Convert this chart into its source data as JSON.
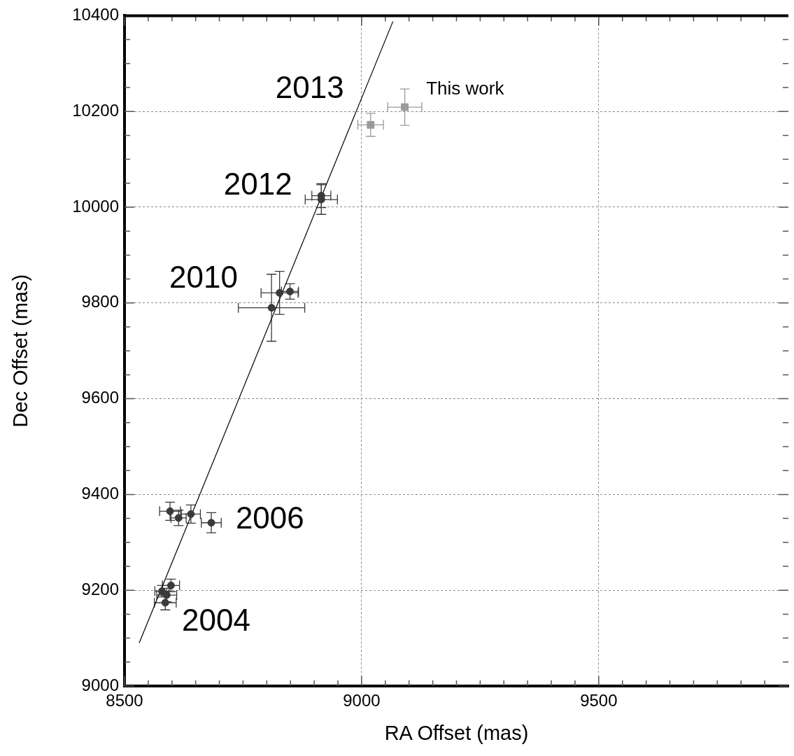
{
  "chart_data": {
    "type": "scatter",
    "xlabel": "RA Offset (mas)",
    "ylabel": "Dec Offset (mas)",
    "xlim": [
      8500,
      9900
    ],
    "ylim": [
      9000,
      10400
    ],
    "xticks": [
      8500,
      {
        "value": 8550,
        "label": null
      },
      {
        "value": 8600,
        "label": null
      },
      {
        "value": 8650,
        "label": null
      },
      {
        "value": 8700,
        "label": null
      },
      {
        "value": 8750,
        "label": null
      },
      {
        "value": 8800,
        "label": null
      },
      {
        "value": 8850,
        "label": null
      },
      {
        "value": 8900,
        "label": null
      },
      {
        "value": 8950,
        "label": null
      },
      9000,
      {
        "value": 9050,
        "label": null
      },
      {
        "value": 9100,
        "label": null
      },
      {
        "value": 9150,
        "label": null
      },
      {
        "value": 9200,
        "label": null
      },
      {
        "value": 9250,
        "label": null
      },
      {
        "value": 9300,
        "label": null
      },
      {
        "value": 9350,
        "label": null
      },
      {
        "value": 9400,
        "label": null
      },
      {
        "value": 9450,
        "label": null
      },
      9500,
      {
        "value": 9550,
        "label": null
      },
      {
        "value": 9600,
        "label": null
      },
      {
        "value": 9650,
        "label": null
      },
      {
        "value": 9700,
        "label": null
      },
      {
        "value": 9750,
        "label": null
      },
      {
        "value": 9800,
        "label": null
      },
      {
        "value": 9850,
        "label": null
      }
    ],
    "yticks": [
      9000,
      {
        "value": 9050,
        "label": null
      },
      {
        "value": 9100,
        "label": null
      },
      {
        "value": 9150,
        "label": null
      },
      9200,
      {
        "value": 9250,
        "label": null
      },
      {
        "value": 9300,
        "label": null
      },
      {
        "value": 9350,
        "label": null
      },
      9400,
      {
        "value": 9450,
        "label": null
      },
      {
        "value": 9500,
        "label": null
      },
      {
        "value": 9550,
        "label": null
      },
      9600,
      {
        "value": 9650,
        "label": null
      },
      {
        "value": 9700,
        "label": null
      },
      {
        "value": 9750,
        "label": null
      },
      9800,
      {
        "value": 9850,
        "label": null
      },
      {
        "value": 9900,
        "label": null
      },
      {
        "value": 9950,
        "label": null
      },
      10000,
      {
        "value": 10050,
        "label": null
      },
      {
        "value": 10100,
        "label": null
      },
      {
        "value": 10150,
        "label": null
      },
      10200,
      {
        "value": 10250,
        "label": null
      },
      {
        "value": 10300,
        "label": null
      },
      {
        "value": 10350,
        "label": null
      },
      10400
    ],
    "grid": true,
    "legend": false,
    "series": [
      {
        "type": "scatter",
        "color": "#3a3a3a",
        "x": [
          8598,
          8579,
          8589,
          8586,
          8596,
          8614,
          8640,
          8683,
          8827,
          8849,
          8810,
          8915,
          8915
        ],
        "values": [
          9210,
          9198,
          9190,
          9174,
          9365,
          9351,
          9359,
          9341,
          9821,
          9824,
          9790,
          10024,
          10016
        ],
        "xerrors": [
          18,
          15,
          21,
          23,
          22,
          16,
          20,
          21,
          39,
          18,
          70,
          20,
          34
        ],
        "errors": [
          13,
          12,
          14,
          15,
          19,
          16,
          19,
          21,
          45,
          16,
          70,
          25,
          31
        ]
      },
      {
        "type": "scatter",
        "marker": "square",
        "color": "#9a9a9a",
        "x": [
          9091,
          9019
        ],
        "values": [
          10209,
          10172
        ],
        "xerrors": [
          36,
          27
        ],
        "errors": [
          38,
          24
        ]
      },
      {
        "type": "line",
        "marker": "none",
        "line_style": "solid",
        "color": "#000000",
        "x": [
          8531,
          9066
        ],
        "values": [
          9090,
          10388
        ]
      }
    ],
    "annotations": [
      "2013",
      "2012",
      "2010",
      "2006",
      "2004",
      "This work"
    ]
  }
}
